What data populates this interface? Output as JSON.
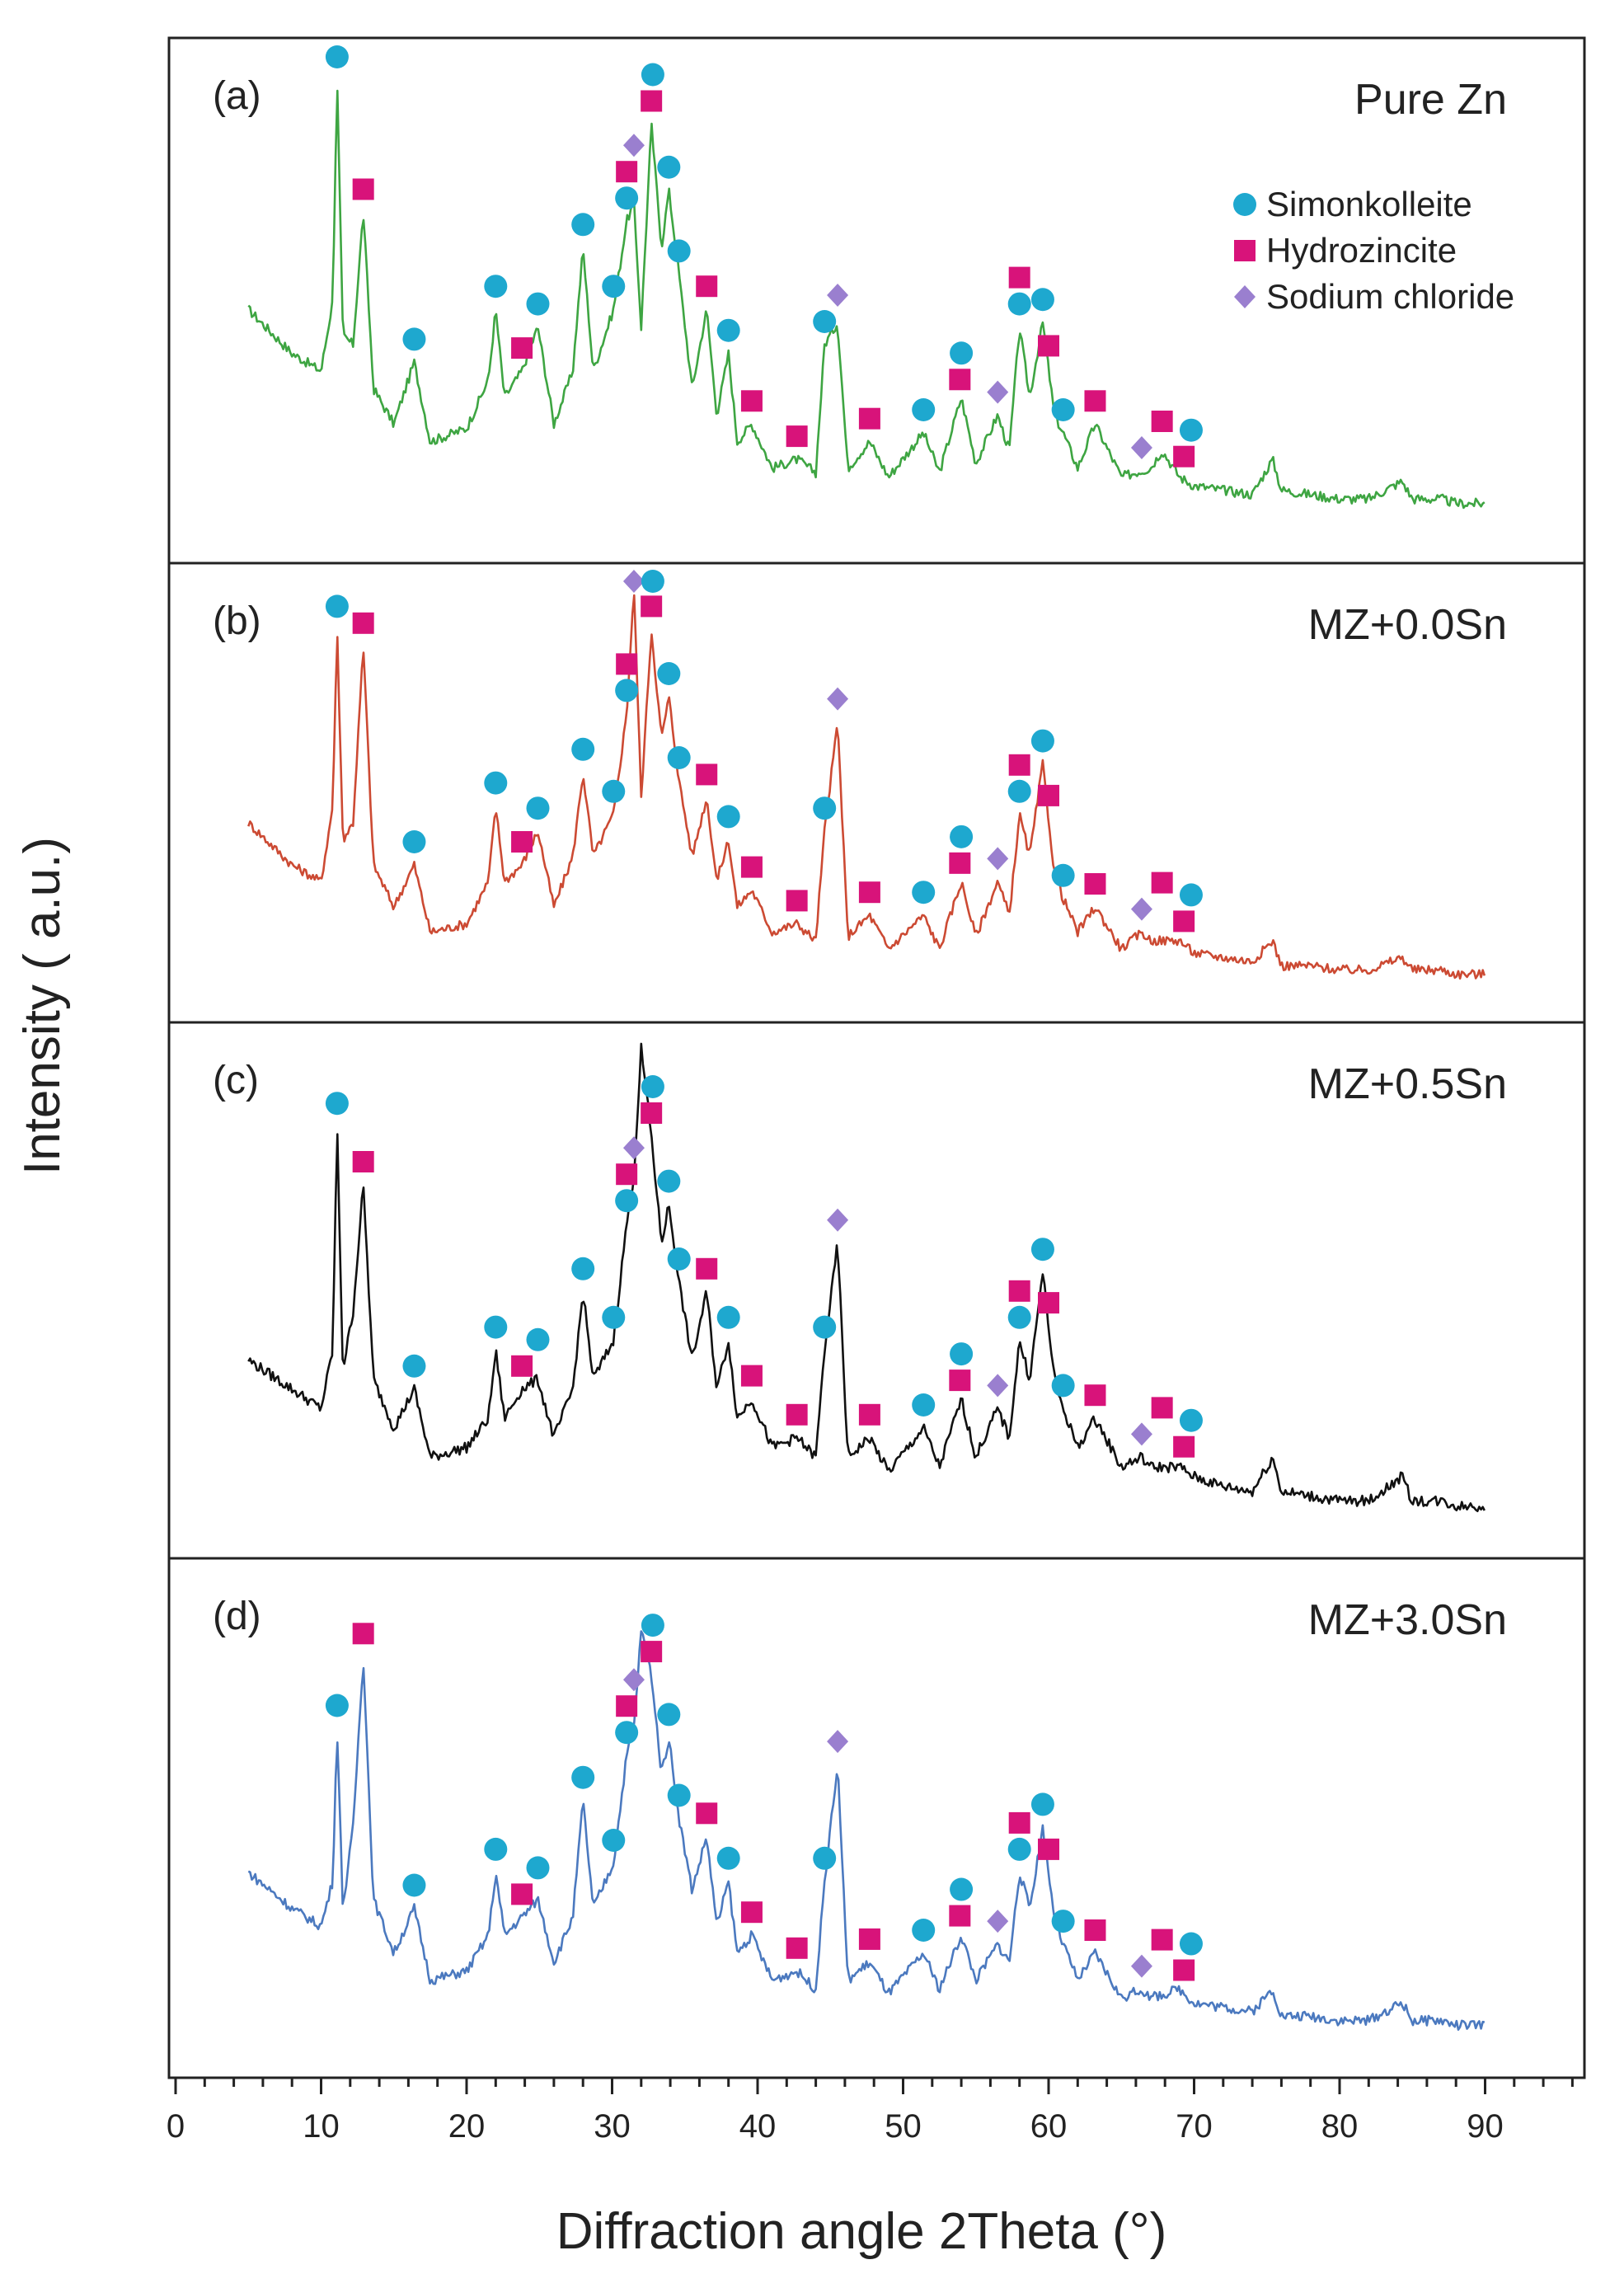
{
  "chart_data": {
    "type": "line",
    "title": "",
    "xlabel": "Diffraction angle 2Theta (°)",
    "ylabel": "Intensity ( a.u.)",
    "xlim": [
      0,
      97
    ],
    "xticks": [
      0,
      10,
      20,
      30,
      40,
      50,
      60,
      70,
      80,
      90
    ],
    "grid": false,
    "legend_position": "top-right of panel (a)",
    "phases": [
      {
        "id": "simonkolleite",
        "name": "Simonkolleite",
        "marker": "circle",
        "color": "#1ea8cf"
      },
      {
        "id": "hydrozincite",
        "name": "Hydrozincite",
        "marker": "square",
        "color": "#d8137a"
      },
      {
        "id": "nacl",
        "name": "Sodium chloride",
        "marker": "diamond",
        "color": "#9a7fcf"
      }
    ],
    "peak_positions": {
      "simonkolleite": [
        11.1,
        16.4,
        22.0,
        24.9,
        28.0,
        30.1,
        31.0,
        32.8,
        33.9,
        34.6,
        38.0,
        44.6,
        51.4,
        54.0,
        58.0,
        59.6,
        61.0,
        69.8
      ],
      "hydrozincite": [
        12.9,
        23.8,
        31.0,
        32.7,
        36.5,
        39.6,
        42.7,
        47.7,
        53.9,
        58.0,
        60.0,
        63.2,
        67.8,
        69.3
      ],
      "nacl": [
        31.5,
        45.5,
        56.5,
        66.4
      ]
    },
    "series": [
      {
        "name": "Pure Zn",
        "label": "(a)",
        "color": "#3ea542",
        "x": [
          5,
          8,
          10,
          10.8,
          11.1,
          11.5,
          12.2,
          12.9,
          13.6,
          15,
          16.4,
          17.5,
          20,
          21.5,
          22.0,
          22.6,
          23.8,
          24.9,
          26,
          27.3,
          28.0,
          28.7,
          30.1,
          31.0,
          31.5,
          32.0,
          32.7,
          33.4,
          33.9,
          34.6,
          35.5,
          36.5,
          37.2,
          38.0,
          38.6,
          39.6,
          41,
          42.7,
          44,
          44.6,
          45.5,
          46.2,
          47.7,
          49,
          51.4,
          52.5,
          54.0,
          55,
          56.5,
          57.3,
          58.0,
          58.7,
          59.6,
          60.4,
          61.0,
          62,
          63.2,
          65,
          67,
          67.8,
          69,
          70,
          72,
          74,
          75.4,
          76,
          78,
          80,
          82,
          84.3,
          85,
          87,
          88,
          90
        ],
        "y": [
          48,
          38,
          34,
          50,
          100,
          42,
          40,
          70,
          30,
          22,
          36,
          18,
          21,
          32,
          48,
          28,
          34,
          44,
          22,
          34,
          62,
          34,
          48,
          68,
          72,
          44,
          90,
          62,
          75,
          56,
          30,
          48,
          24,
          38,
          18,
          22,
          12,
          14,
          11,
          40,
          45,
          12,
          18,
          10,
          20,
          11,
          28,
          13,
          24,
          16,
          44,
          28,
          45,
          24,
          20,
          12,
          22,
          10,
          12,
          16,
          10,
          8,
          7,
          6,
          14,
          7,
          6,
          5,
          5,
          9,
          5,
          5,
          4,
          4
        ]
      },
      {
        "name": "MZ+0.0Sn",
        "label": "(b)",
        "color": "#cc4a33",
        "x": [
          5,
          8,
          10,
          10.8,
          11.1,
          11.5,
          12.2,
          12.9,
          13.6,
          15,
          16.4,
          17.5,
          20,
          21.5,
          22.0,
          22.6,
          23.8,
          24.9,
          26,
          27.3,
          28.0,
          28.7,
          30.1,
          31.0,
          31.5,
          32.0,
          32.7,
          33.4,
          33.9,
          34.6,
          35.5,
          36.5,
          37.2,
          38.0,
          38.6,
          39.6,
          41,
          42.7,
          44,
          44.6,
          45.5,
          46.2,
          47.7,
          49,
          51.4,
          52.5,
          54.0,
          55,
          56.5,
          57.3,
          58.0,
          58.7,
          59.6,
          60.4,
          61.0,
          62,
          63.2,
          65,
          66.4,
          67,
          69,
          70,
          72,
          74,
          75.4,
          76,
          78,
          80,
          82,
          84.3,
          85,
          87,
          88,
          90
        ],
        "y": [
          40,
          30,
          26,
          44,
          86,
          36,
          40,
          82,
          30,
          20,
          30,
          14,
          16,
          26,
          44,
          26,
          30,
          38,
          20,
          32,
          52,
          32,
          42,
          66,
          96,
          46,
          86,
          60,
          70,
          50,
          32,
          46,
          26,
          36,
          20,
          24,
          14,
          16,
          12,
          38,
          64,
          13,
          18,
          10,
          18,
          10,
          26,
          13,
          26,
          18,
          42,
          32,
          54,
          28,
          22,
          14,
          20,
          10,
          14,
          12,
          12,
          9,
          8,
          7,
          12,
          6,
          6,
          5,
          5,
          8,
          5,
          5,
          4,
          4
        ]
      },
      {
        "name": "MZ+0.5Sn",
        "label": "(c)",
        "color": "#111111",
        "x": [
          5,
          8,
          10,
          10.8,
          11.1,
          11.5,
          12.2,
          12.9,
          13.6,
          15,
          16.4,
          17.5,
          20,
          21.5,
          22.0,
          22.6,
          23.8,
          24.9,
          26,
          27.3,
          28.0,
          28.7,
          30.1,
          31.0,
          31.5,
          32.0,
          32.7,
          33.4,
          33.9,
          34.6,
          35.5,
          36.5,
          37.2,
          38.0,
          38.6,
          39.6,
          41,
          42.7,
          44,
          44.6,
          45.5,
          46.2,
          47.7,
          49,
          51.4,
          52.5,
          54.0,
          55,
          56.5,
          57.3,
          58.0,
          58.7,
          59.6,
          60.4,
          61.0,
          62,
          63.2,
          65,
          66.4,
          67,
          69,
          70,
          72,
          74,
          75.4,
          76,
          78,
          80,
          82,
          84.3,
          85,
          87,
          88,
          90
        ],
        "y": [
          34,
          28,
          24,
          36,
          82,
          32,
          44,
          70,
          30,
          20,
          28,
          14,
          16,
          22,
          36,
          22,
          28,
          30,
          18,
          28,
          48,
          30,
          38,
          62,
          72,
          98,
          80,
          58,
          66,
          50,
          34,
          48,
          28,
          38,
          22,
          26,
          16,
          18,
          14,
          36,
          58,
          14,
          18,
          11,
          20,
          12,
          26,
          14,
          24,
          18,
          38,
          30,
          52,
          30,
          24,
          16,
          22,
          12,
          14,
          12,
          12,
          10,
          8,
          7,
          14,
          7,
          6,
          5,
          5,
          10,
          5,
          5,
          4,
          4
        ]
      },
      {
        "name": "MZ+3.0Sn",
        "label": "(d)",
        "color": "#4b79bf",
        "x": [
          5,
          8,
          10,
          10.8,
          11.1,
          11.5,
          12.2,
          12.9,
          13.6,
          15,
          16.4,
          17.5,
          20,
          21.5,
          22.0,
          22.6,
          23.8,
          24.9,
          26,
          27.3,
          28.0,
          28.7,
          30.1,
          31.0,
          31.5,
          32.0,
          32.7,
          33.4,
          33.9,
          34.6,
          35.5,
          36.5,
          37.2,
          38.0,
          38.6,
          39.6,
          41,
          42.7,
          44,
          44.6,
          45.5,
          46.2,
          47.7,
          49,
          51.4,
          52.5,
          54.0,
          55,
          56.5,
          57.3,
          58.0,
          58.7,
          59.6,
          60.4,
          61.0,
          62,
          63.2,
          65,
          66.4,
          67,
          69,
          70,
          72,
          74,
          75.4,
          76,
          78,
          80,
          82,
          84.3,
          85,
          87,
          88,
          90
        ],
        "y": [
          38,
          30,
          26,
          36,
          70,
          30,
          48,
          86,
          32,
          20,
          30,
          14,
          16,
          24,
          38,
          24,
          28,
          32,
          18,
          28,
          54,
          30,
          40,
          64,
          70,
          92,
          82,
          60,
          68,
          50,
          34,
          46,
          26,
          36,
          20,
          24,
          14,
          16,
          12,
          36,
          62,
          14,
          18,
          11,
          20,
          12,
          24,
          14,
          22,
          18,
          38,
          30,
          48,
          28,
          22,
          14,
          20,
          10,
          12,
          10,
          12,
          9,
          8,
          7,
          12,
          6,
          6,
          5,
          5,
          9,
          5,
          5,
          4,
          4
        ]
      }
    ]
  }
}
